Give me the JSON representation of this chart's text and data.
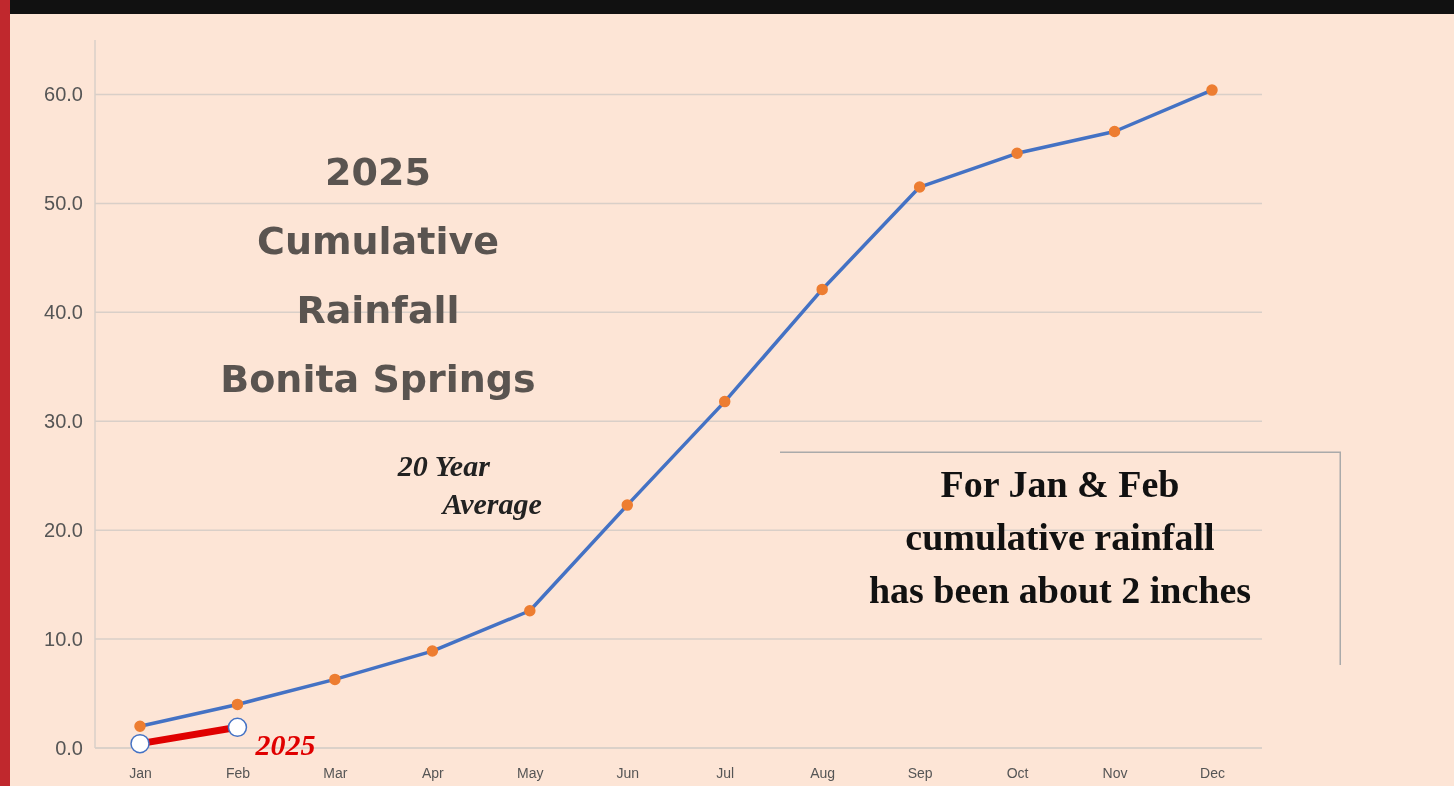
{
  "chart_data": {
    "type": "line",
    "title": "2025 Cumulative Rainfall Bonita Springs",
    "categories": [
      "Jan",
      "Feb",
      "Mar",
      "Apr",
      "May",
      "Jun",
      "Jul",
      "Aug",
      "Sep",
      "Oct",
      "Nov",
      "Dec"
    ],
    "series": [
      {
        "name": "20 Year Average",
        "color": "#4472c4",
        "values": [
          2.0,
          4.0,
          6.3,
          8.9,
          12.6,
          22.3,
          31.8,
          42.1,
          51.5,
          54.6,
          56.6,
          60.4
        ]
      },
      {
        "name": "2025",
        "color": "#e00000",
        "values": [
          0.4,
          1.9,
          null,
          null,
          null,
          null,
          null,
          null,
          null,
          null,
          null,
          null
        ]
      }
    ],
    "ylim": [
      0,
      65
    ],
    "yticks": [
      {
        "value": 0,
        "label": "0.0"
      },
      {
        "value": 10,
        "label": "10.0"
      },
      {
        "value": 20,
        "label": "20.0"
      },
      {
        "value": 30,
        "label": "30.0"
      },
      {
        "value": 40,
        "label": "40.0"
      },
      {
        "value": 50,
        "label": "50.0"
      },
      {
        "value": 60,
        "label": "60.0"
      }
    ],
    "grid": "y",
    "marker": "circle",
    "line_style": "solid",
    "annotations": [
      "For Jan & Feb cumulative rainfall has been about 2 inches"
    ]
  }
}
